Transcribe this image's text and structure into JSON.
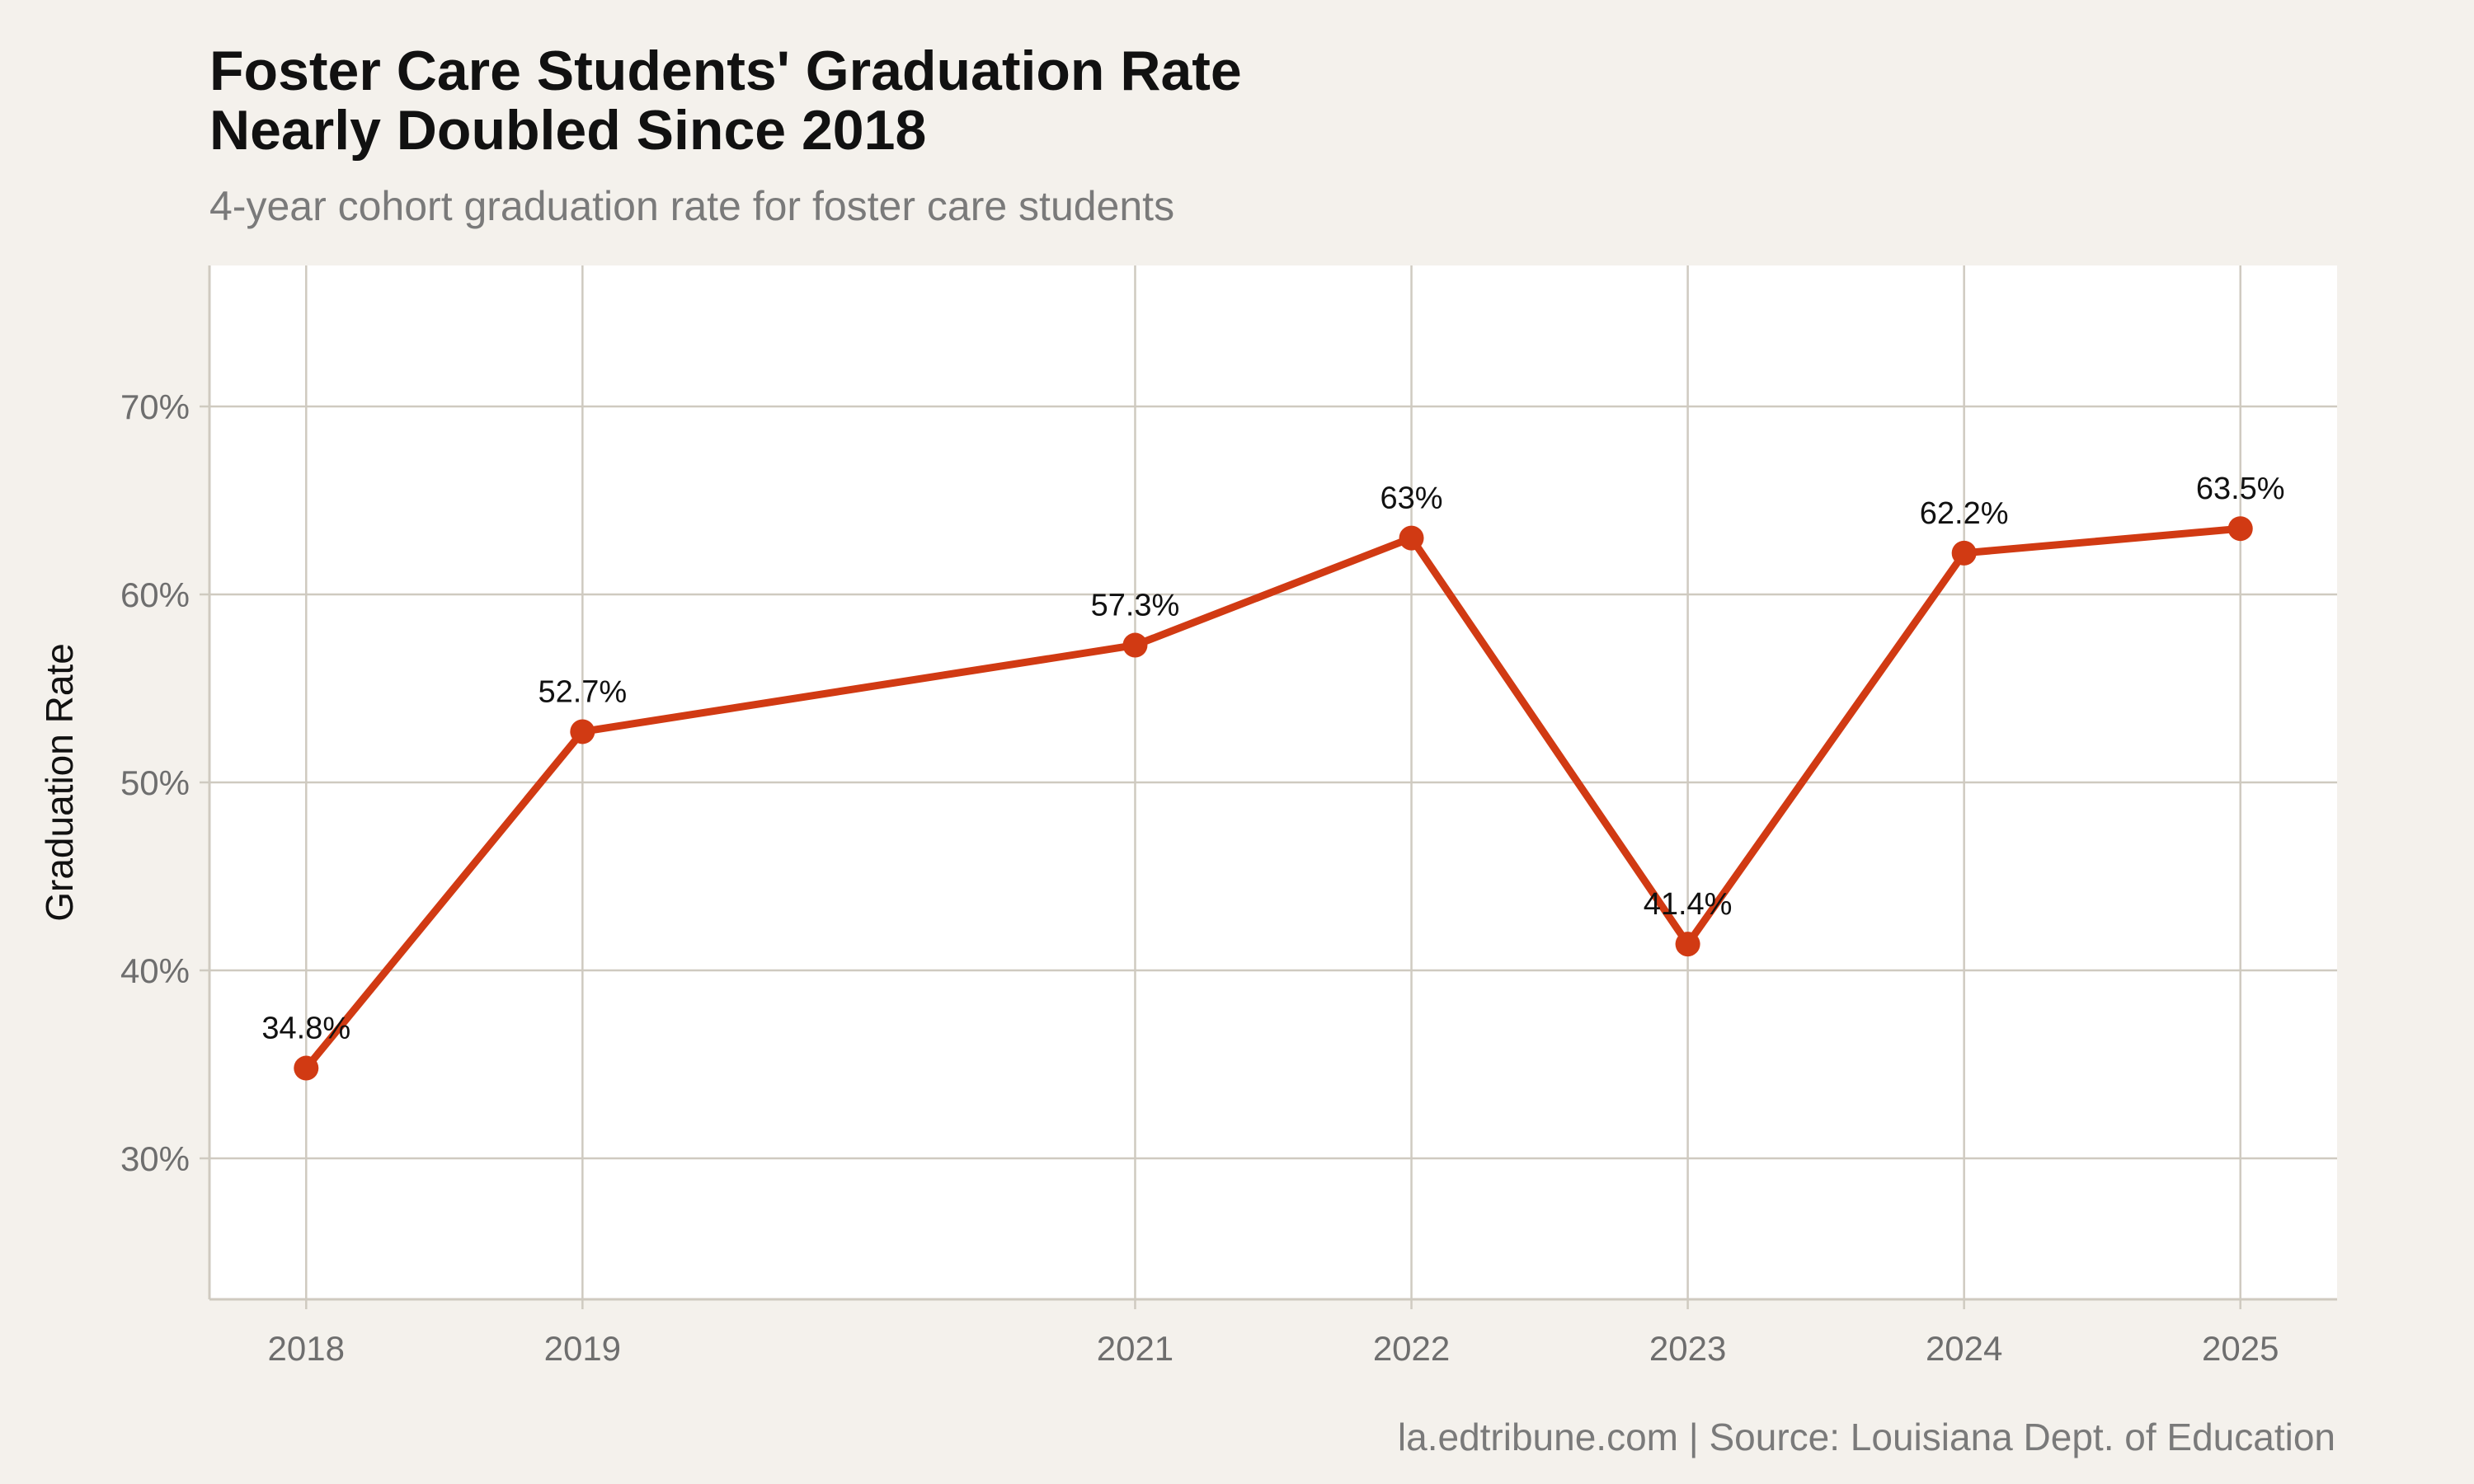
{
  "header": {
    "title": "Foster Care Students' Graduation Rate\nNearly Doubled Since 2018",
    "subtitle": "4-year cohort graduation rate for foster care students"
  },
  "footer": {
    "caption": "la.edtribune.com | Source: Louisiana Dept. of Education"
  },
  "colors": {
    "background": "#f4f1ec",
    "plot_background": "#ffffff",
    "grid": "#cfcac0",
    "line": "#d13a13"
  },
  "chart_data": {
    "type": "line",
    "title": "Foster Care Students' Graduation Rate\nNearly Doubled Since 2018",
    "subtitle": "4-year cohort graduation rate for foster care students",
    "xlabel": "",
    "ylabel": "Graduation Rate",
    "x": [
      2018,
      2019,
      2021,
      2022,
      2023,
      2024,
      2025
    ],
    "x_tick_labels": [
      "2018",
      "2019",
      "2021",
      "2022",
      "2023",
      "2024",
      "2025"
    ],
    "series": [
      {
        "values": [
          34.8,
          52.7,
          57.3,
          63.0,
          41.4,
          62.2,
          63.5
        ],
        "labels": [
          "34.8%",
          "52.7%",
          "57.3%",
          "63%",
          "41.4%",
          "62.2%",
          "63.5%"
        ]
      }
    ],
    "ylim": [
      22.5,
      77.5
    ],
    "xlim": [
      2017.65,
      2025.35
    ],
    "y_ticks": [
      30,
      40,
      50,
      60,
      70
    ],
    "y_tick_labels": [
      "30%",
      "40%",
      "50%",
      "60%",
      "70%"
    ],
    "grid": true,
    "legend": "none"
  }
}
